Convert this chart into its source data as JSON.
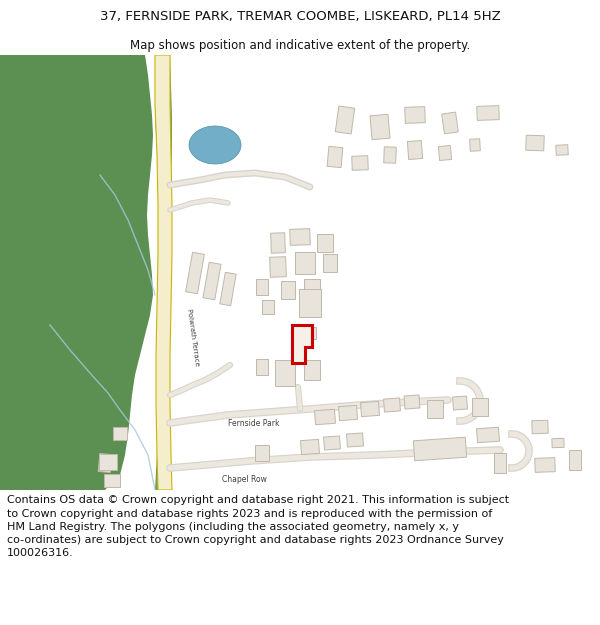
{
  "title": "37, FERNSIDE PARK, TREMAR COOMBE, LISKEARD, PL14 5HZ",
  "subtitle": "Map shows position and indicative extent of the property.",
  "footer_line1": "Contains OS data © Crown copyright and database right 2021. This information is subject",
  "footer_line2": "to Crown copyright and database rights 2023 and is reproduced with the permission of",
  "footer_line3": "HM Land Registry. The polygons (including the associated geometry, namely x, y",
  "footer_line4": "co-ordinates) are subject to Crown copyright and database rights 2023 Ordnance Survey",
  "footer_line5": "100026316.",
  "bg_color": "#ffffff",
  "map_bg": "#ffffff",
  "green_color": "#5c8f52",
  "green2_color": "#6a9a58",
  "road_fill": "#f5eecc",
  "road_edge": "#c8b400",
  "building_fill": "#e8e4dc",
  "building_edge": "#c0b8aa",
  "highlight_color": "#cc0000",
  "blue_color": "#72aec8",
  "stream_color": "#a8c8dc",
  "path_color": "#d8d4cc",
  "path_fill": "#ece8e0",
  "text_color": "#404040",
  "title_fontsize": 9.5,
  "subtitle_fontsize": 8.5,
  "footer_fontsize": 8.0
}
